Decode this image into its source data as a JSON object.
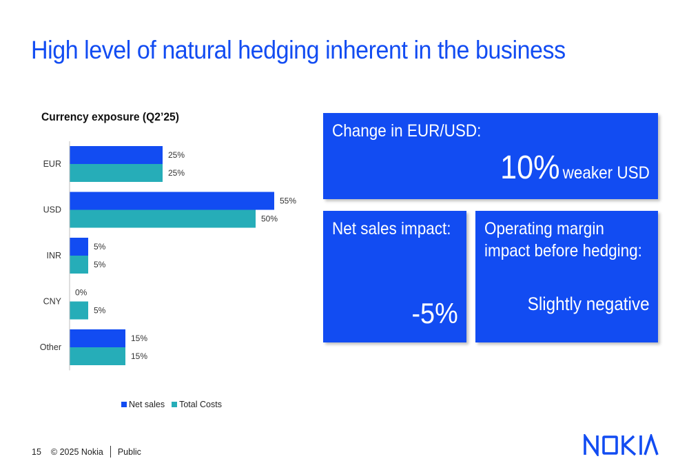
{
  "title": "High level of natural hedging inherent in the business",
  "chart_data": {
    "type": "bar",
    "orientation": "horizontal",
    "title": "Currency exposure (Q2’25)",
    "categories": [
      "EUR",
      "USD",
      "INR",
      "CNY",
      "Other"
    ],
    "series": [
      {
        "name": "Net sales",
        "values": [
          25,
          55,
          5,
          0,
          15
        ],
        "color": "#124cf2"
      },
      {
        "name": "Total Costs",
        "values": [
          25,
          50,
          5,
          5,
          15
        ],
        "color": "#26adb8"
      }
    ],
    "unit": "%",
    "xlim": [
      0,
      60
    ],
    "grid": false,
    "legend": "bottom",
    "data_labels": true
  },
  "boxes": {
    "eur_usd": {
      "label": "Change in EUR/USD:",
      "value": "10%",
      "value_suffix": "weaker USD"
    },
    "net_sales": {
      "label": "Net sales impact:",
      "value": "-5%"
    },
    "op_margin": {
      "label": "Operating margin impact before hedging:",
      "value": "Slightly negative"
    }
  },
  "footer": {
    "page": "15",
    "copyright": "© 2025 Nokia",
    "classification": "Public"
  },
  "logo": {
    "text": "NOKIA",
    "color": "#124cf2"
  }
}
